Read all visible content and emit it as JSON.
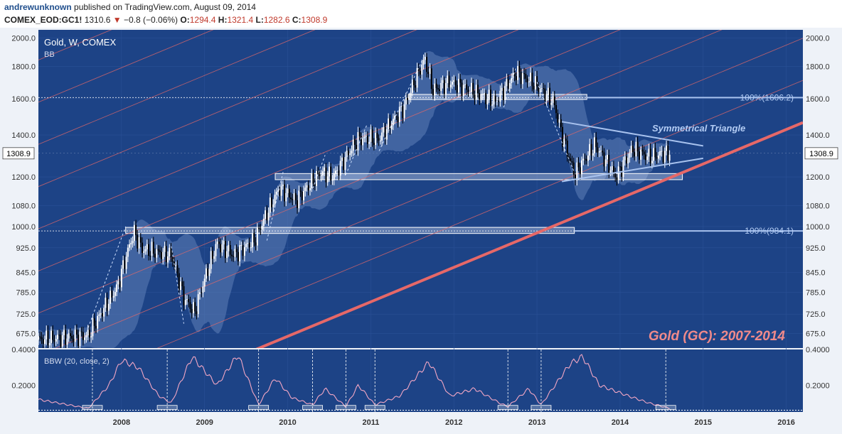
{
  "header": {
    "author": "andrewunknown",
    "published_text": "published on TradingView.com, August 09, 2014",
    "symbol": "COMEX_EOD:GC1!",
    "last": "1310.6",
    "change": "−0.8 (−0.06%)",
    "o_label": "O:",
    "o_value": "1294.4",
    "h_label": "H:",
    "h_value": "1321.4",
    "l_label": "L:",
    "l_value": "1282.6",
    "c_label": "C:",
    "c_value": "1308.9"
  },
  "colors": {
    "background": "#1d4386",
    "band": "#5f7fb8",
    "channel": "#e66868",
    "triangle": "#a8c2ee",
    "zone": "#dce6f8",
    "title_overlay": "#f08a8a"
  },
  "chart_data": [
    {
      "type": "candlestick",
      "title": "Gold, W, COMEX",
      "indicator_label": "BB",
      "overlay_title": "Gold (GC): 2007-2014",
      "annotation": "Symmetrical Triangle",
      "price_label": "1308.9",
      "fib_levels": [
        {
          "label": "100%(1606.2)",
          "value": 1606.2
        },
        {
          "label": "100%(984.1)",
          "value": 984.1
        }
      ],
      "y_ticks": [
        "2000.0",
        "1800.0",
        "1600.0",
        "1400.0",
        "1200.0",
        "1080.0",
        "1000.0",
        "925.0",
        "845.0",
        "785.0",
        "725.0",
        "675.0"
      ],
      "x_ticks": [
        "2008",
        "2009",
        "2010",
        "2011",
        "2012",
        "2013",
        "2014",
        "2015",
        "2016"
      ],
      "scale": "log",
      "ylim": [
        640,
        2060
      ],
      "xlim": [
        2007.0,
        2016.2
      ],
      "price_anchors": [
        [
          2007.0,
          660
        ],
        [
          2007.6,
          670
        ],
        [
          2007.95,
          800
        ],
        [
          2008.15,
          980
        ],
        [
          2008.25,
          920
        ],
        [
          2008.6,
          900
        ],
        [
          2008.75,
          770
        ],
        [
          2008.88,
          730
        ],
        [
          2009.15,
          940
        ],
        [
          2009.35,
          900
        ],
        [
          2009.6,
          950
        ],
        [
          2009.9,
          1150
        ],
        [
          2010.1,
          1100
        ],
        [
          2010.4,
          1220
        ],
        [
          2010.55,
          1200
        ],
        [
          2010.85,
          1380
        ],
        [
          2011.1,
          1380
        ],
        [
          2011.4,
          1550
        ],
        [
          2011.65,
          1850
        ],
        [
          2011.75,
          1650
        ],
        [
          2011.95,
          1700
        ],
        [
          2012.2,
          1650
        ],
        [
          2012.5,
          1580
        ],
        [
          2012.75,
          1760
        ],
        [
          2012.95,
          1700
        ],
        [
          2013.2,
          1580
        ],
        [
          2013.3,
          1400
        ],
        [
          2013.45,
          1210
        ],
        [
          2013.7,
          1350
        ],
        [
          2013.95,
          1200
        ],
        [
          2014.15,
          1330
        ],
        [
          2014.35,
          1290
        ],
        [
          2014.55,
          1310
        ],
        [
          2014.6,
          1308
        ]
      ]
    },
    {
      "type": "line",
      "title": "BBW (20, close, 2)",
      "y_ticks": [
        "0.4000",
        "0.2000"
      ],
      "ylim": [
        0.05,
        0.4
      ],
      "anchors": [
        [
          2007.0,
          0.12
        ],
        [
          2007.6,
          0.07
        ],
        [
          2007.85,
          0.2
        ],
        [
          2008.0,
          0.34
        ],
        [
          2008.2,
          0.3
        ],
        [
          2008.45,
          0.14
        ],
        [
          2008.6,
          0.1
        ],
        [
          2008.85,
          0.36
        ],
        [
          2009.15,
          0.2
        ],
        [
          2009.4,
          0.37
        ],
        [
          2009.65,
          0.09
        ],
        [
          2009.85,
          0.24
        ],
        [
          2010.05,
          0.13
        ],
        [
          2010.3,
          0.09
        ],
        [
          2010.45,
          0.18
        ],
        [
          2010.7,
          0.08
        ],
        [
          2010.85,
          0.2
        ],
        [
          2011.05,
          0.09
        ],
        [
          2011.35,
          0.14
        ],
        [
          2011.7,
          0.33
        ],
        [
          2011.95,
          0.14
        ],
        [
          2012.25,
          0.18
        ],
        [
          2012.55,
          0.1
        ],
        [
          2012.65,
          0.08
        ],
        [
          2012.9,
          0.18
        ],
        [
          2013.05,
          0.09
        ],
        [
          2013.4,
          0.32
        ],
        [
          2013.55,
          0.36
        ],
        [
          2013.75,
          0.2
        ],
        [
          2014.1,
          0.14
        ],
        [
          2014.35,
          0.1
        ],
        [
          2014.6,
          0.07
        ]
      ],
      "squeeze_markers": [
        2007.65,
        2008.55,
        2009.65,
        2010.3,
        2010.7,
        2011.05,
        2012.65,
        2013.05,
        2014.55
      ]
    }
  ]
}
